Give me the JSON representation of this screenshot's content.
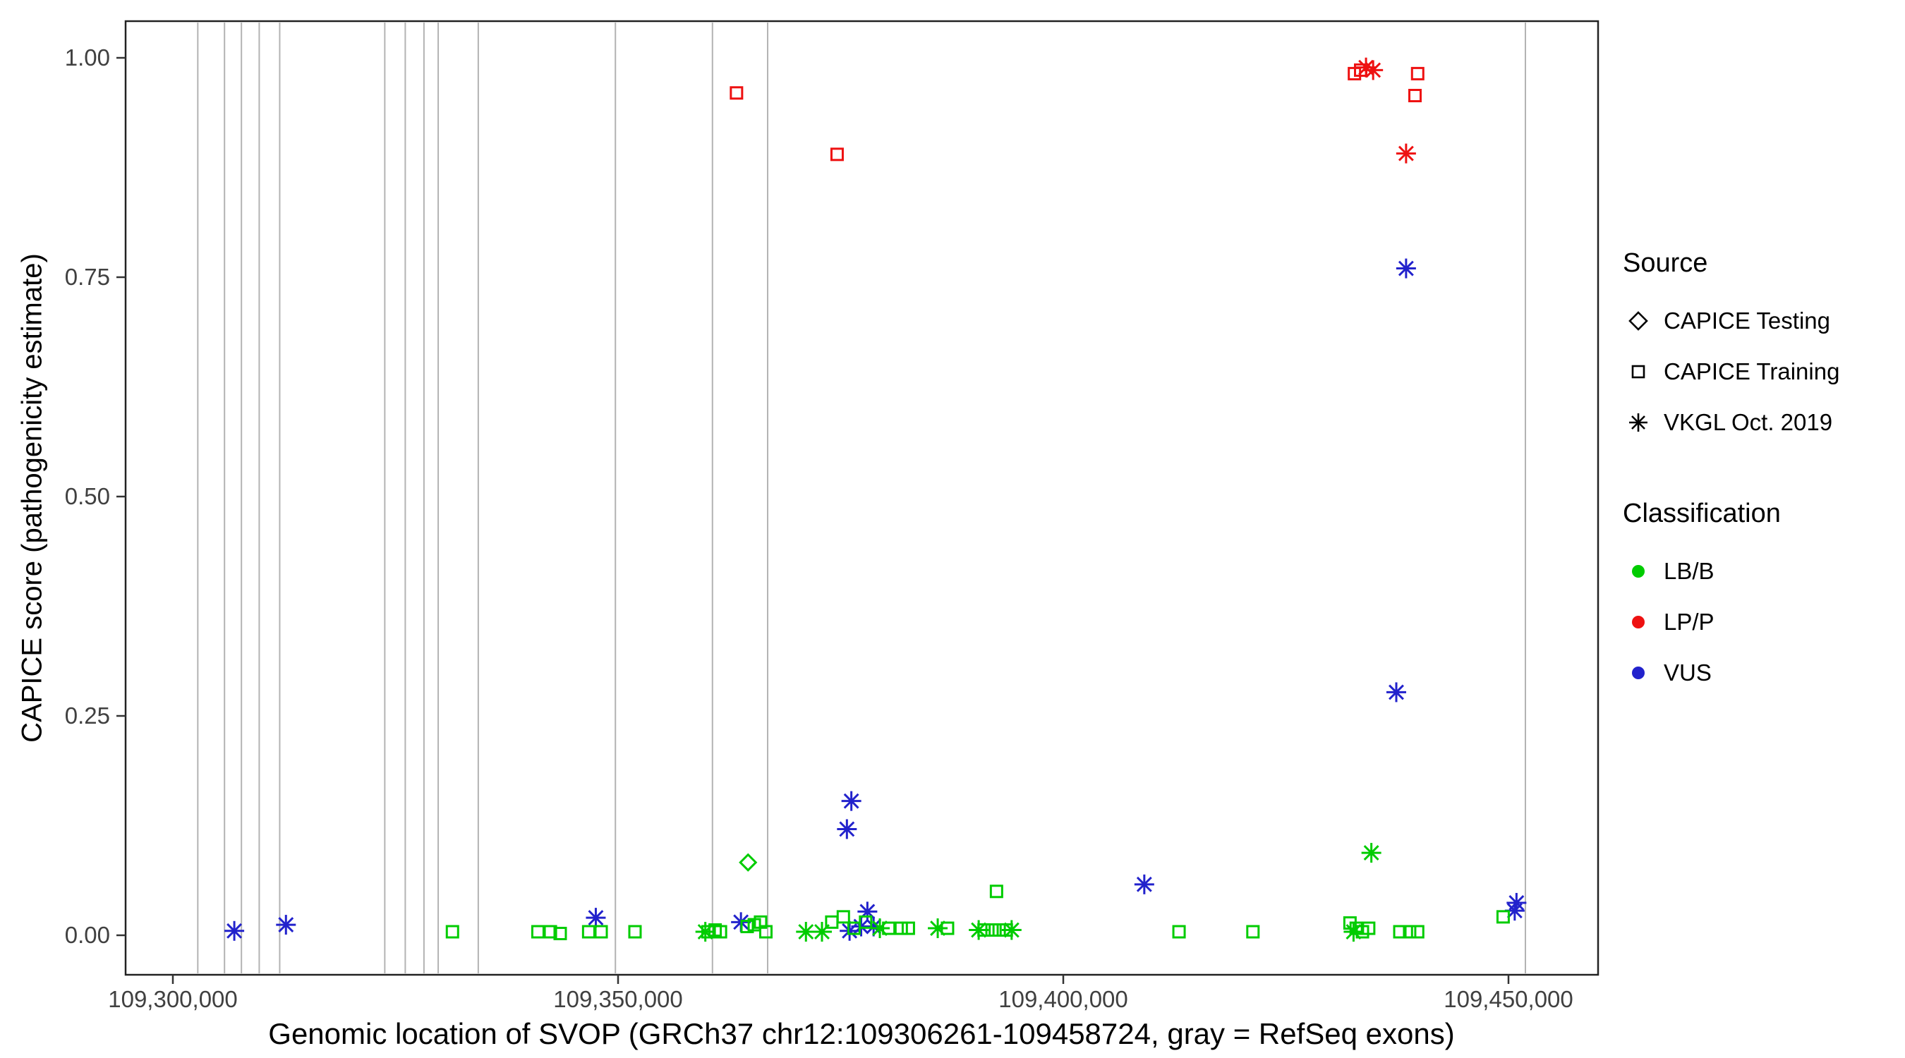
{
  "figure": {
    "xlabel": "Genomic location of SVOP (GRCh37 chr12:109306261-109458724, gray = RefSeq exons)",
    "ylabel": "CAPICE score (pathogenicity estimate)"
  },
  "legend": {
    "source_title": "Source",
    "source_items": [
      {
        "label": "CAPICE Testing",
        "shape": "diamond"
      },
      {
        "label": "CAPICE Training",
        "shape": "square"
      },
      {
        "label": "VKGL Oct. 2019",
        "shape": "asterisk"
      }
    ],
    "classification_title": "Classification",
    "classification_items": [
      {
        "label": "LB/B",
        "color": "#00CC00"
      },
      {
        "label": "LP/P",
        "color": "#EE1111"
      },
      {
        "label": "VUS",
        "color": "#2222CC"
      }
    ]
  },
  "chart_data": {
    "type": "scatter",
    "title": "",
    "xlabel": "Genomic location of SVOP (GRCh37 chr12:109306261-109458724, gray = RefSeq exons)",
    "ylabel": "CAPICE score (pathogenicity estimate)",
    "xlim": [
      109294700,
      109460000
    ],
    "ylim": [
      -0.045,
      1.045
    ],
    "grid": false,
    "legend_position": "right",
    "x_ticks": [
      {
        "value": 109300000,
        "label": "109,300,000"
      },
      {
        "value": 109350000,
        "label": "109,350,000"
      },
      {
        "value": 109400000,
        "label": "109,400,000"
      },
      {
        "value": 109450000,
        "label": "109,450,000"
      }
    ],
    "y_ticks": [
      {
        "value": 0.0,
        "label": "0.00"
      },
      {
        "value": 0.25,
        "label": "0.25"
      },
      {
        "value": 0.5,
        "label": "0.50"
      },
      {
        "value": 0.75,
        "label": "0.75"
      },
      {
        "value": 1.0,
        "label": "1.00"
      }
    ],
    "exon_color": "#b3b3b3",
    "exon_note": "gray vertical lines = RefSeq exons",
    "exon_positions": [
      109302800,
      109305800,
      109307700,
      109309700,
      109312000,
      109323800,
      109326100,
      109328200,
      109329800,
      109334300,
      109349700,
      109360600,
      109366800,
      109451900
    ],
    "source_shapes": {
      "CAPICE Testing": "diamond",
      "CAPICE Training": "square",
      "VKGL Oct. 2019": "asterisk"
    },
    "classification_colors": {
      "LB/B": "#00CC00",
      "LP/P": "#EE1111",
      "VUS": "#2222CC"
    },
    "series": [
      {
        "source": "CAPICE Testing",
        "classification": "LB/B",
        "points": [
          [
            109364600,
            0.083
          ]
        ]
      },
      {
        "source": "CAPICE Training",
        "classification": "LP/P",
        "points": [
          [
            109363300,
            0.96
          ],
          [
            109374600,
            0.89
          ],
          [
            109432700,
            0.982
          ],
          [
            109433400,
            0.986
          ],
          [
            109439500,
            0.957
          ],
          [
            109439800,
            0.982
          ]
        ]
      },
      {
        "source": "VKGL Oct. 2019",
        "classification": "LP/P",
        "points": [
          [
            109434000,
            0.989
          ],
          [
            109434800,
            0.986
          ],
          [
            109438500,
            0.891
          ]
        ]
      },
      {
        "source": "VKGL Oct. 2019",
        "classification": "VUS",
        "points": [
          [
            109306900,
            0.005
          ],
          [
            109312700,
            0.012
          ],
          [
            109347500,
            0.02
          ],
          [
            109363800,
            0.015
          ],
          [
            109375700,
            0.121
          ],
          [
            109376000,
            0.005
          ],
          [
            109376200,
            0.153
          ],
          [
            109377300,
            0.01
          ],
          [
            109378000,
            0.027
          ],
          [
            109378700,
            0.01
          ],
          [
            109409100,
            0.058
          ],
          [
            109437400,
            0.277
          ],
          [
            109438500,
            0.76
          ],
          [
            109450700,
            0.028
          ],
          [
            109450900,
            0.037
          ]
        ]
      },
      {
        "source": "CAPICE Training",
        "classification": "LB/B",
        "points": [
          [
            109331400,
            0.004
          ],
          [
            109341000,
            0.004
          ],
          [
            109342400,
            0.004
          ],
          [
            109343500,
            0.002
          ],
          [
            109346700,
            0.004
          ],
          [
            109348100,
            0.004
          ],
          [
            109351900,
            0.004
          ],
          [
            109360100,
            0.004
          ],
          [
            109360900,
            0.006
          ],
          [
            109361500,
            0.004
          ],
          [
            109364500,
            0.01
          ],
          [
            109365300,
            0.012
          ],
          [
            109366000,
            0.015
          ],
          [
            109366600,
            0.004
          ],
          [
            109374000,
            0.015
          ],
          [
            109375300,
            0.021
          ],
          [
            109376500,
            0.008
          ],
          [
            109377800,
            0.015
          ],
          [
            109380400,
            0.008
          ],
          [
            109381800,
            0.008
          ],
          [
            109382600,
            0.008
          ],
          [
            109387000,
            0.008
          ],
          [
            109391100,
            0.006
          ],
          [
            109392000,
            0.006
          ],
          [
            109392500,
            0.05
          ],
          [
            109392800,
            0.006
          ],
          [
            109393600,
            0.006
          ],
          [
            109413000,
            0.004
          ],
          [
            109421300,
            0.004
          ],
          [
            109432200,
            0.014
          ],
          [
            109432900,
            0.008
          ],
          [
            109433600,
            0.004
          ],
          [
            109434300,
            0.008
          ],
          [
            109437800,
            0.004
          ],
          [
            109438900,
            0.004
          ],
          [
            109439800,
            0.004
          ],
          [
            109449400,
            0.021
          ]
        ]
      },
      {
        "source": "VKGL Oct. 2019",
        "classification": "LB/B",
        "points": [
          [
            109359800,
            0.004
          ],
          [
            109371100,
            0.004
          ],
          [
            109372900,
            0.004
          ],
          [
            109379400,
            0.008
          ],
          [
            109385900,
            0.008
          ],
          [
            109390500,
            0.006
          ],
          [
            109394200,
            0.006
          ],
          [
            109432600,
            0.004
          ],
          [
            109434600,
            0.094
          ]
        ]
      }
    ]
  }
}
